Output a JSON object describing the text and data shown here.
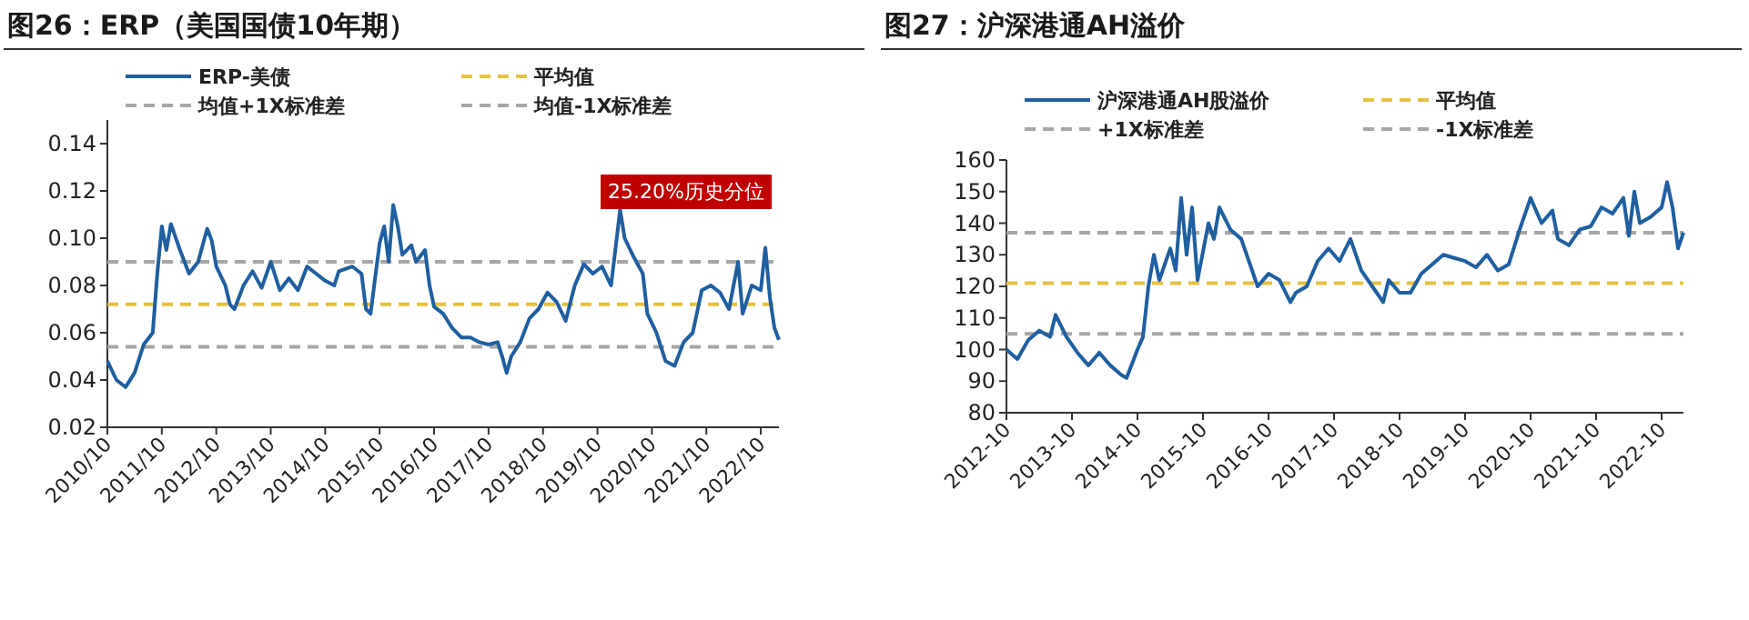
{
  "chart_data": [
    {
      "type": "line",
      "title": "图26：ERP（美国国债10年期）",
      "x": [
        "2010-10",
        "2010-12",
        "2011-02",
        "2011-04",
        "2011-06",
        "2011-08",
        "2011-09",
        "2011-10",
        "2011-11",
        "2011-12",
        "2012-02",
        "2012-04",
        "2012-06",
        "2012-08",
        "2012-09",
        "2012-10",
        "2012-12",
        "2013-01",
        "2013-02",
        "2013-04",
        "2013-06",
        "2013-08",
        "2013-10",
        "2013-12",
        "2014-02",
        "2014-04",
        "2014-06",
        "2014-08",
        "2014-10",
        "2014-12",
        "2015-01",
        "2015-04",
        "2015-06",
        "2015-07",
        "2015-08",
        "2015-10",
        "2015-11",
        "2015-12",
        "2016-01",
        "2016-02",
        "2016-03",
        "2016-05",
        "2016-06",
        "2016-08",
        "2016-09",
        "2016-10",
        "2016-12",
        "2017-02",
        "2017-04",
        "2017-06",
        "2017-08",
        "2017-10",
        "2017-12",
        "2018-01",
        "2018-02",
        "2018-03",
        "2018-05",
        "2018-07",
        "2018-09",
        "2018-11",
        "2019-01",
        "2019-03",
        "2019-05",
        "2019-07",
        "2019-09",
        "2019-11",
        "2020-01",
        "2020-03",
        "2020-04",
        "2020-06",
        "2020-08",
        "2020-09",
        "2020-11",
        "2021-01",
        "2021-03",
        "2021-05",
        "2021-07",
        "2021-09",
        "2021-11",
        "2022-01",
        "2022-03",
        "2022-05",
        "2022-06",
        "2022-08",
        "2022-10",
        "2022-11",
        "2022-12",
        "2023-01",
        "2023-02"
      ],
      "series": [
        {
          "name": "ERP-美债",
          "color": "#1f5fa0",
          "values": [
            0.048,
            0.04,
            0.037,
            0.043,
            0.055,
            0.06,
            0.085,
            0.105,
            0.095,
            0.106,
            0.095,
            0.085,
            0.09,
            0.104,
            0.099,
            0.088,
            0.08,
            0.072,
            0.07,
            0.08,
            0.086,
            0.079,
            0.09,
            0.078,
            0.083,
            0.078,
            0.088,
            0.085,
            0.082,
            0.08,
            0.086,
            0.088,
            0.085,
            0.07,
            0.068,
            0.098,
            0.105,
            0.09,
            0.114,
            0.105,
            0.093,
            0.097,
            0.09,
            0.095,
            0.08,
            0.071,
            0.068,
            0.062,
            0.058,
            0.058,
            0.056,
            0.055,
            0.056,
            0.05,
            0.043,
            0.05,
            0.056,
            0.066,
            0.07,
            0.077,
            0.073,
            0.065,
            0.08,
            0.089,
            0.085,
            0.088,
            0.08,
            0.112,
            0.1,
            0.092,
            0.085,
            0.068,
            0.06,
            0.048,
            0.046,
            0.056,
            0.06,
            0.078,
            0.08,
            0.077,
            0.07,
            0.09,
            0.068,
            0.08,
            0.078,
            0.096,
            0.075,
            0.062,
            0.057
          ]
        }
      ],
      "ref_lines": [
        {
          "axis": "y",
          "value": 0.072,
          "label": "平均值",
          "color": "#e6c040",
          "line_style": "dashed"
        },
        {
          "axis": "y",
          "value": 0.09,
          "label": "均值+1X标准差",
          "color": "#a6a6a6",
          "line_style": "dashed"
        },
        {
          "axis": "y",
          "value": 0.054,
          "label": "均值-1X标准差",
          "color": "#a6a6a6",
          "line_style": "dashed"
        }
      ],
      "annotations": [
        "25.20%历史分位"
      ],
      "xlim": [
        "2010-10",
        "2023-02"
      ],
      "xticks": [
        {
          "value": "2010-10",
          "label": "2010/10"
        },
        {
          "value": "2011-10",
          "label": "2011/10"
        },
        {
          "value": "2012-10",
          "label": "2012/10"
        },
        {
          "value": "2013-10",
          "label": "2013/10"
        },
        {
          "value": "2014-10",
          "label": "2014/10"
        },
        {
          "value": "2015-10",
          "label": "2015/10"
        },
        {
          "value": "2016-10",
          "label": "2016/10"
        },
        {
          "value": "2017-10",
          "label": "2017/10"
        },
        {
          "value": "2018-10",
          "label": "2018/10"
        },
        {
          "value": "2019-10",
          "label": "2019/10"
        },
        {
          "value": "2020-10",
          "label": "2020/10"
        },
        {
          "value": "2021-10",
          "label": "2021/10"
        },
        {
          "value": "2022-10",
          "label": "2022/10"
        }
      ],
      "ylim": [
        0.02,
        0.15
      ],
      "yticks": [
        {
          "value": 0.02,
          "label": "0.02"
        },
        {
          "value": 0.04,
          "label": "0.04"
        },
        {
          "value": 0.06,
          "label": "0.06"
        },
        {
          "value": 0.08,
          "label": "0.08"
        },
        {
          "value": 0.1,
          "label": "0.10"
        },
        {
          "value": 0.12,
          "label": "0.12"
        },
        {
          "value": 0.14,
          "label": "0.14"
        }
      ],
      "legend": "top",
      "grid": false
    },
    {
      "type": "line",
      "title": "图27：沪深港通AH溢价",
      "x": [
        "2012-10",
        "2012-12",
        "2013-02",
        "2013-04",
        "2013-06",
        "2013-07",
        "2013-09",
        "2013-11",
        "2014-01",
        "2014-03",
        "2014-05",
        "2014-07",
        "2014-08",
        "2014-10",
        "2014-11",
        "2014-12",
        "2015-01",
        "2015-02",
        "2015-04",
        "2015-05",
        "2015-06",
        "2015-07",
        "2015-08",
        "2015-09",
        "2015-11",
        "2015-12",
        "2016-01",
        "2016-03",
        "2016-05",
        "2016-06",
        "2016-08",
        "2016-10",
        "2016-12",
        "2017-02",
        "2017-03",
        "2017-05",
        "2017-07",
        "2017-09",
        "2017-11",
        "2018-01",
        "2018-03",
        "2018-05",
        "2018-07",
        "2018-08",
        "2018-10",
        "2018-12",
        "2019-02",
        "2019-04",
        "2019-06",
        "2019-08",
        "2019-10",
        "2019-12",
        "2020-02",
        "2020-04",
        "2020-06",
        "2020-08",
        "2020-10",
        "2020-12",
        "2021-02",
        "2021-03",
        "2021-05",
        "2021-07",
        "2021-09",
        "2021-11",
        "2022-01",
        "2022-03",
        "2022-04",
        "2022-05",
        "2022-06",
        "2022-08",
        "2022-10",
        "2022-11",
        "2022-12",
        "2023-01",
        "2023-02"
      ],
      "series": [
        {
          "name": "沪深港通AH股溢价",
          "color": "#1f5fa0",
          "values": [
            100,
            97,
            103,
            106,
            104,
            111,
            104,
            99,
            95,
            99,
            95,
            92,
            91,
            100,
            104,
            120,
            130,
            122,
            132,
            125,
            148,
            130,
            145,
            122,
            140,
            135,
            145,
            138,
            135,
            130,
            120,
            124,
            122,
            115,
            118,
            120,
            128,
            132,
            128,
            135,
            125,
            120,
            115,
            122,
            118,
            118,
            124,
            127,
            130,
            129,
            128,
            126,
            130,
            125,
            127,
            138,
            148,
            140,
            144,
            135,
            133,
            138,
            139,
            145,
            143,
            148,
            136,
            150,
            140,
            142,
            145,
            153,
            145,
            132,
            137
          ]
        }
      ],
      "ref_lines": [
        {
          "axis": "y",
          "value": 121,
          "label": "平均值",
          "color": "#e6c040",
          "line_style": "dashed"
        },
        {
          "axis": "y",
          "value": 137,
          "label": "+1X标准差",
          "color": "#a6a6a6",
          "line_style": "dashed"
        },
        {
          "axis": "y",
          "value": 105,
          "label": "-1X标准差",
          "color": "#a6a6a6",
          "line_style": "dashed"
        }
      ],
      "xlim": [
        "2012-10",
        "2023-02"
      ],
      "xticks": [
        {
          "value": "2012-10",
          "label": "2012-10"
        },
        {
          "value": "2013-10",
          "label": "2013-10"
        },
        {
          "value": "2014-10",
          "label": "2014-10"
        },
        {
          "value": "2015-10",
          "label": "2015-10"
        },
        {
          "value": "2016-10",
          "label": "2016-10"
        },
        {
          "value": "2017-10",
          "label": "2017-10"
        },
        {
          "value": "2018-10",
          "label": "2018-10"
        },
        {
          "value": "2019-10",
          "label": "2019-10"
        },
        {
          "value": "2020-10",
          "label": "2020-10"
        },
        {
          "value": "2021-10",
          "label": "2021-10"
        },
        {
          "value": "2022-10",
          "label": "2022-10"
        }
      ],
      "ylim": [
        80,
        160
      ],
      "yticks": [
        80,
        90,
        100,
        110,
        120,
        130,
        140,
        150,
        160
      ],
      "legend": "top",
      "grid": false
    }
  ]
}
